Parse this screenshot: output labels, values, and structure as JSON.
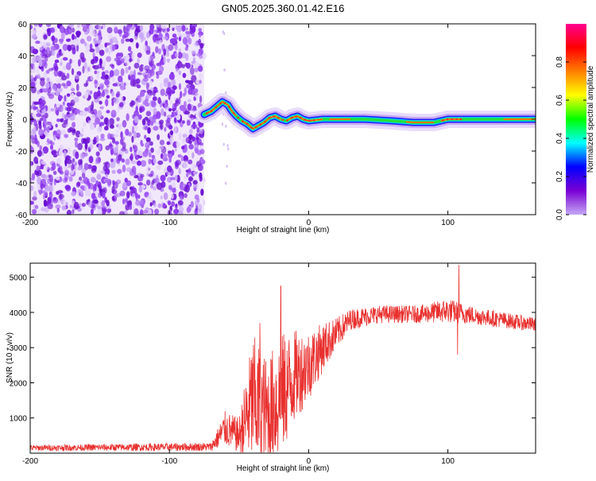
{
  "title": "GN05.2025.360.01.42.E16",
  "chart_data": [
    {
      "type": "heatmap",
      "name": "spectrogram",
      "xlabel": "Height of straight line (km)",
      "ylabel": "Frequency (Hz)",
      "xlim": [
        -200,
        163
      ],
      "ylim": [
        -60,
        60
      ],
      "xticks": [
        "-200",
        "-100",
        "0",
        "100"
      ],
      "xtick_values": [
        -200,
        -100,
        0,
        100
      ],
      "yticks": [
        "60",
        "40",
        "20",
        "0",
        "-20",
        "-40",
        "-60"
      ],
      "ytick_values": [
        60,
        40,
        20,
        0,
        -20,
        -40,
        -60
      ],
      "noise_region_x": [
        -200,
        -75
      ],
      "signal_track": [
        {
          "x": -75,
          "y": 3
        },
        {
          "x": -70,
          "y": 5
        },
        {
          "x": -66,
          "y": 8
        },
        {
          "x": -62,
          "y": 11
        },
        {
          "x": -58,
          "y": 9
        },
        {
          "x": -55,
          "y": 5
        },
        {
          "x": -52,
          "y": 2
        },
        {
          "x": -48,
          "y": -1
        },
        {
          "x": -44,
          "y": -3
        },
        {
          "x": -40,
          "y": -6
        },
        {
          "x": -36,
          "y": -4
        },
        {
          "x": -32,
          "y": -2
        },
        {
          "x": -28,
          "y": 1
        },
        {
          "x": -24,
          "y": 2
        },
        {
          "x": -20,
          "y": 0
        },
        {
          "x": -16,
          "y": -1
        },
        {
          "x": -12,
          "y": 1
        },
        {
          "x": -8,
          "y": 2
        },
        {
          "x": -4,
          "y": 0
        },
        {
          "x": 0,
          "y": -1
        },
        {
          "x": 10,
          "y": 0
        },
        {
          "x": 20,
          "y": 0
        },
        {
          "x": 40,
          "y": 0
        },
        {
          "x": 60,
          "y": -1
        },
        {
          "x": 75,
          "y": -2
        },
        {
          "x": 90,
          "y": -2
        },
        {
          "x": 100,
          "y": 0
        },
        {
          "x": 115,
          "y": 0
        },
        {
          "x": 130,
          "y": 0
        },
        {
          "x": 150,
          "y": 0
        },
        {
          "x": 163,
          "y": 0
        }
      ],
      "colorbar": {
        "label": "Normalized spectral amplitude",
        "range": [
          0,
          1
        ],
        "ticks": [
          "0.0",
          "0.2",
          "0.4",
          "0.6",
          "0.8"
        ],
        "tick_values": [
          0,
          0.2,
          0.4,
          0.6,
          0.8
        ],
        "colors": [
          "#c4a8f2",
          "#7b00d4",
          "#0000ff",
          "#00ffff",
          "#00ff00",
          "#ffff00",
          "#ff8000",
          "#ff0000",
          "#ff0090"
        ]
      }
    },
    {
      "type": "line",
      "name": "snr",
      "xlabel": "Height of straight line (km)",
      "ylabel": "SNR (10 * v/v)",
      "xlim": [
        -200,
        163
      ],
      "ylim": [
        0,
        5400
      ],
      "xticks": [
        "-200",
        "-100",
        "0",
        "100"
      ],
      "xtick_values": [
        -200,
        -100,
        0,
        100
      ],
      "yticks": [
        "5000",
        "4000",
        "3000",
        "2000",
        "1000"
      ],
      "ytick_values": [
        5000,
        4000,
        3000,
        2000,
        1000
      ],
      "color": "#e8302e",
      "envelope": [
        {
          "x": -200,
          "base": 150,
          "amp": 80
        },
        {
          "x": -70,
          "base": 180,
          "amp": 120
        },
        {
          "x": -60,
          "base": 700,
          "amp": 500
        },
        {
          "x": -50,
          "base": 500,
          "amp": 500
        },
        {
          "x": -40,
          "base": 1500,
          "amp": 1900
        },
        {
          "x": -30,
          "base": 1100,
          "amp": 1600
        },
        {
          "x": -20,
          "base": 1600,
          "amp": 1800
        },
        {
          "x": -10,
          "base": 2200,
          "amp": 1300
        },
        {
          "x": 0,
          "base": 2500,
          "amp": 1000
        },
        {
          "x": 10,
          "base": 3000,
          "amp": 700
        },
        {
          "x": 20,
          "base": 3400,
          "amp": 450
        },
        {
          "x": 30,
          "base": 3800,
          "amp": 300
        },
        {
          "x": 50,
          "base": 3950,
          "amp": 250
        },
        {
          "x": 80,
          "base": 3950,
          "amp": 250
        },
        {
          "x": 100,
          "base": 4050,
          "amp": 350
        },
        {
          "x": 120,
          "base": 3900,
          "amp": 250
        },
        {
          "x": 163,
          "base": 3650,
          "amp": 200
        }
      ],
      "spikes": [
        {
          "x": -35,
          "y": 3700
        },
        {
          "x": -20,
          "y": 4750
        },
        {
          "x": 108,
          "y": 5350
        },
        {
          "x": 107,
          "y": 2800
        }
      ]
    }
  ]
}
